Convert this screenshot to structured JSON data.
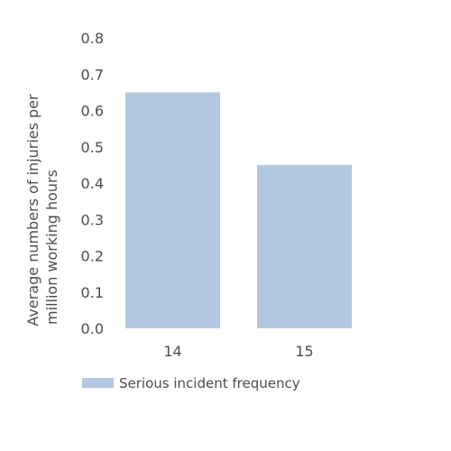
{
  "chart_data": {
    "type": "bar",
    "categories": [
      "14",
      "15"
    ],
    "series": [
      {
        "name": "Serious incident frequency",
        "values": [
          0.65,
          0.45
        ]
      }
    ],
    "ylabel_lines": [
      "Average numbers of injuries per",
      "million working hours"
    ],
    "xlabel": "",
    "ylim": [
      0,
      0.8
    ],
    "yticks": [
      "0.0",
      "0.1",
      "0.2",
      "0.3",
      "0.4",
      "0.5",
      "0.6",
      "0.7",
      "0.8"
    ],
    "grid": false,
    "legend_position": "bottom-left",
    "colors": {
      "bar": "#b3c7e0"
    }
  }
}
